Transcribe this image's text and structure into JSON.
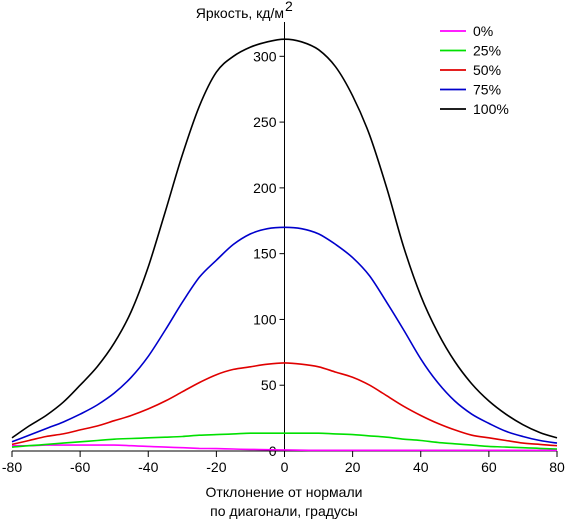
{
  "chart_data": {
    "type": "line",
    "ylabel": "Яркость, кд/м",
    "ylabel_sup": "2",
    "xlabel_line1": "Отклонение от нормали",
    "xlabel_line2": "по диагонали, градусы",
    "xlim": [
      -80,
      80
    ],
    "ylim": [
      0,
      320
    ],
    "x_ticks": [
      -80,
      -60,
      -40,
      -20,
      0,
      20,
      40,
      60,
      80
    ],
    "y_ticks": [
      0,
      50,
      100,
      150,
      200,
      250,
      300
    ],
    "legend_position": "top-right",
    "x": [
      -80,
      -75,
      -70,
      -65,
      -60,
      -55,
      -50,
      -45,
      -40,
      -35,
      -30,
      -25,
      -20,
      -15,
      -10,
      -5,
      0,
      5,
      10,
      15,
      20,
      25,
      30,
      35,
      40,
      45,
      50,
      55,
      60,
      65,
      70,
      75,
      80
    ],
    "series": [
      {
        "name": "0%",
        "color": "#ff00ff",
        "values": [
          4,
          4,
          4.5,
          4.5,
          4.5,
          4.5,
          4.5,
          4,
          3.5,
          3,
          2.5,
          2,
          1.8,
          1.5,
          1.2,
          1,
          0.8,
          0.6,
          0.5,
          0.5,
          0.5,
          0.5,
          0.5,
          0.5,
          0.5,
          0.5,
          0.5,
          0.5,
          0.5,
          0.5,
          0.5,
          0.5,
          0.5
        ]
      },
      {
        "name": "25%",
        "color": "#00e000",
        "values": [
          3,
          4,
          5,
          6,
          7,
          8,
          9,
          9.5,
          10,
          10.5,
          11,
          12,
          12.5,
          13,
          13.5,
          13.5,
          13.5,
          13.5,
          13.5,
          13,
          12.5,
          11.5,
          10.5,
          9,
          8,
          6.5,
          5.5,
          4.5,
          3.5,
          3,
          2.5,
          2,
          1.5
        ]
      },
      {
        "name": "50%",
        "color": "#e00000",
        "values": [
          5,
          8,
          11,
          13,
          16,
          19,
          23,
          27,
          32,
          38,
          45,
          52,
          58,
          62,
          64,
          66,
          67,
          66,
          64,
          60,
          56,
          50,
          42,
          34,
          27,
          21,
          16,
          12,
          10,
          8,
          6,
          5,
          4
        ]
      },
      {
        "name": "75%",
        "color": "#0000cc",
        "values": [
          7,
          12,
          17,
          22,
          28,
          35,
          44,
          56,
          72,
          92,
          113,
          132,
          145,
          157,
          165,
          169,
          170,
          169,
          165,
          157,
          147,
          133,
          113,
          92,
          70,
          52,
          38,
          28,
          21,
          15,
          11,
          8,
          6
        ]
      },
      {
        "name": "100%",
        "color": "#000000",
        "values": [
          10,
          19,
          27,
          37,
          50,
          64,
          82,
          106,
          140,
          182,
          225,
          262,
          288,
          300,
          307,
          311,
          313,
          311,
          305,
          292,
          270,
          240,
          200,
          155,
          118,
          90,
          68,
          51,
          38,
          28,
          20,
          14,
          10
        ]
      }
    ]
  }
}
